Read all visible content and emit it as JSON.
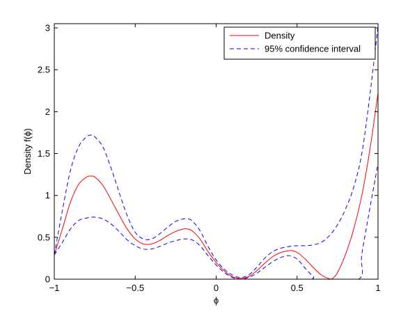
{
  "chart_data": {
    "type": "line",
    "xlabel": "ϕ",
    "ylabel": "Density f(ϕ)",
    "xlim": [
      -1,
      1
    ],
    "ylim": [
      0,
      3.05
    ],
    "x_ticks": [
      -1,
      -0.5,
      0,
      0.5,
      1
    ],
    "x_tick_labels": [
      "−1",
      "−0.5",
      "0",
      "0.5",
      "1"
    ],
    "y_ticks": [
      0,
      0.5,
      1,
      1.5,
      2,
      2.5,
      3
    ],
    "y_tick_labels": [
      "0",
      "0.5",
      "1",
      "1.5",
      "2",
      "2.5",
      "3"
    ],
    "grid": false,
    "legend_position": "top-right",
    "series": [
      {
        "name": "Density",
        "style": "solid",
        "color": "#ff0000",
        "x": [
          -1.0,
          -0.95,
          -0.9,
          -0.85,
          -0.8,
          -0.77,
          -0.75,
          -0.7,
          -0.65,
          -0.6,
          -0.55,
          -0.5,
          -0.45,
          -0.4,
          -0.35,
          -0.3,
          -0.25,
          -0.2,
          -0.18,
          -0.15,
          -0.1,
          -0.05,
          0.0,
          0.05,
          0.1,
          0.15,
          0.2,
          0.25,
          0.3,
          0.35,
          0.4,
          0.45,
          0.47,
          0.5,
          0.55,
          0.6,
          0.65,
          0.7,
          0.72,
          0.75,
          0.8,
          0.85,
          0.9,
          0.95,
          1.0
        ],
        "y": [
          0.29,
          0.6,
          0.92,
          1.13,
          1.22,
          1.23,
          1.22,
          1.12,
          0.95,
          0.77,
          0.6,
          0.48,
          0.42,
          0.42,
          0.46,
          0.52,
          0.57,
          0.6,
          0.6,
          0.58,
          0.48,
          0.33,
          0.2,
          0.1,
          0.03,
          0.01,
          0.03,
          0.1,
          0.19,
          0.27,
          0.32,
          0.34,
          0.34,
          0.32,
          0.24,
          0.14,
          0.05,
          0.005,
          0.01,
          0.08,
          0.3,
          0.6,
          1.0,
          1.55,
          2.22
        ]
      },
      {
        "name": "95% confidence interval",
        "style": "dashed",
        "color": "#0000ff",
        "x": [
          -1.0,
          -0.95,
          -0.9,
          -0.85,
          -0.8,
          -0.77,
          -0.75,
          -0.7,
          -0.65,
          -0.6,
          -0.55,
          -0.5,
          -0.45,
          -0.4,
          -0.35,
          -0.3,
          -0.25,
          -0.2,
          -0.18,
          -0.15,
          -0.1,
          -0.05,
          0.0,
          0.05,
          0.1,
          0.15,
          0.2,
          0.25,
          0.3,
          0.35,
          0.4,
          0.45,
          0.5,
          0.55,
          0.6,
          0.65,
          0.7,
          0.75,
          0.8,
          0.85,
          0.9,
          0.95,
          1.0
        ],
        "y": [
          0.29,
          0.82,
          1.3,
          1.58,
          1.7,
          1.72,
          1.7,
          1.58,
          1.33,
          1.04,
          0.76,
          0.56,
          0.48,
          0.48,
          0.54,
          0.62,
          0.69,
          0.72,
          0.72,
          0.7,
          0.58,
          0.39,
          0.23,
          0.12,
          0.05,
          0.02,
          0.05,
          0.14,
          0.25,
          0.33,
          0.37,
          0.39,
          0.4,
          0.4,
          0.41,
          0.44,
          0.52,
          0.65,
          0.84,
          1.1,
          1.5,
          2.2,
          3.02
        ]
      },
      {
        "name": "",
        "style": "dashed",
        "color": "#0000ff",
        "x": [
          -1.0,
          -0.95,
          -0.9,
          -0.85,
          -0.8,
          -0.77,
          -0.75,
          -0.7,
          -0.65,
          -0.6,
          -0.55,
          -0.5,
          -0.45,
          -0.4,
          -0.35,
          -0.3,
          -0.25,
          -0.2,
          -0.15,
          -0.1,
          -0.05,
          0.0,
          0.05,
          0.1,
          0.15,
          0.2,
          0.25,
          0.3,
          0.35,
          0.4,
          0.45,
          0.5,
          0.55,
          0.6,
          0.62,
          0.88,
          0.9,
          0.95,
          1.0
        ],
        "y": [
          0.29,
          0.44,
          0.6,
          0.7,
          0.73,
          0.74,
          0.74,
          0.72,
          0.66,
          0.57,
          0.47,
          0.4,
          0.36,
          0.36,
          0.39,
          0.43,
          0.46,
          0.48,
          0.47,
          0.4,
          0.28,
          0.17,
          0.08,
          0.02,
          0.0,
          0.02,
          0.07,
          0.14,
          0.21,
          0.26,
          0.28,
          0.24,
          0.13,
          0.03,
          0.0,
          0.0,
          0.3,
          0.85,
          1.38
        ]
      }
    ]
  }
}
